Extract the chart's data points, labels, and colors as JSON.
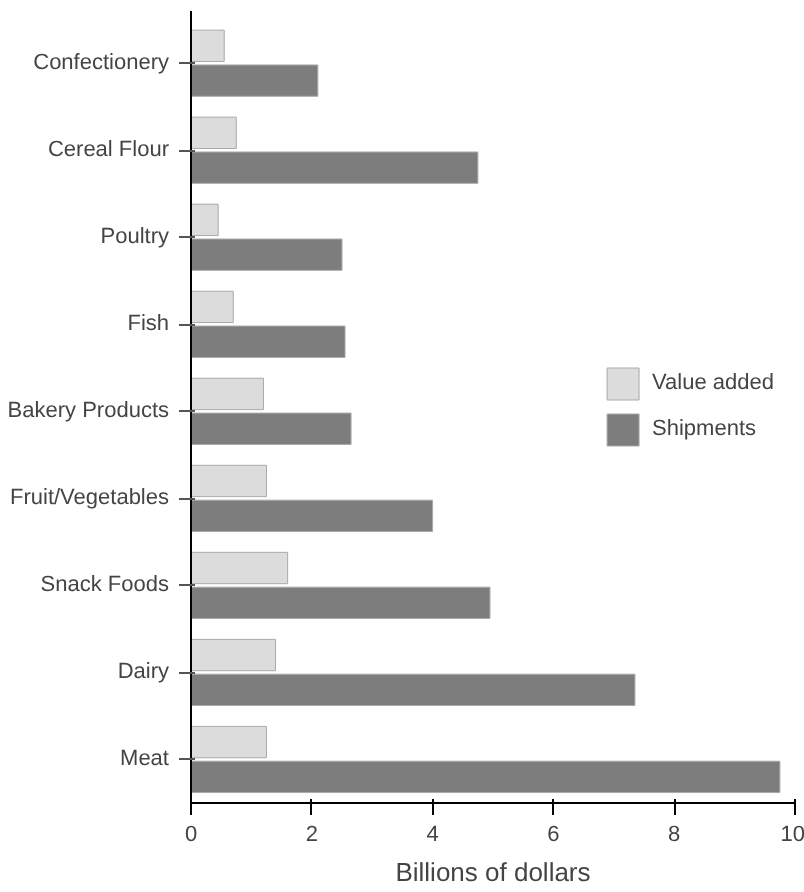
{
  "chart_data": {
    "type": "bar",
    "orientation": "horizontal",
    "xlabel": "Billions of dollars",
    "categories": [
      "Confectionery",
      "Cereal Flour",
      "Poultry",
      "Fish",
      "Bakery Products",
      "Fruit/Vegetables",
      "Snack Foods",
      "Dairy",
      "Meat"
    ],
    "series": [
      {
        "name": "Value added",
        "color": "#dcdcdc",
        "values": [
          0.55,
          0.75,
          0.45,
          0.7,
          1.2,
          1.25,
          1.6,
          1.4,
          1.25
        ]
      },
      {
        "name": "Shipments",
        "color": "#7d7d7d",
        "values": [
          2.1,
          4.75,
          2.5,
          2.55,
          2.65,
          4.0,
          4.95,
          7.35,
          9.75
        ]
      }
    ],
    "xlim": [
      0,
      10
    ],
    "xticks": [
      0,
      2,
      4,
      6,
      8,
      10
    ],
    "grid": false,
    "legend": "right"
  }
}
